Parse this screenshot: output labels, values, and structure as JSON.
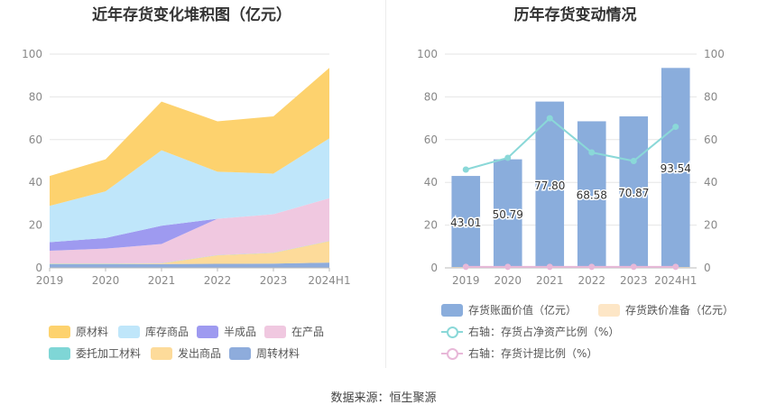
{
  "titles": {
    "left": "近年存货变化堆积图（亿元）",
    "right": "历年存货变动情况"
  },
  "source_text": "数据来源：恒生聚源",
  "chart_data": [
    {
      "type": "area",
      "stacked": true,
      "title": "近年存货变化堆积图（亿元）",
      "categories": [
        "2019",
        "2020",
        "2021",
        "2022",
        "2023",
        "2024H1"
      ],
      "ylim": [
        0,
        100
      ],
      "yticks": [
        0,
        20,
        40,
        60,
        80,
        100
      ],
      "grid": true,
      "legend_position": "bottom",
      "series": [
        {
          "name": "周转材料",
          "color": "#8eacdc",
          "values": [
            1.8,
            1.8,
            1.8,
            1.9,
            2.0,
            2.5
          ]
        },
        {
          "name": "发出商品",
          "color": "#fddb9a",
          "values": [
            0.2,
            0.2,
            0.3,
            4.0,
            5.0,
            10.0
          ]
        },
        {
          "name": "委托加工材料",
          "color": "#7fd6d6",
          "values": [
            0.1,
            0.1,
            0.1,
            0.1,
            0.1,
            0.1
          ]
        },
        {
          "name": "在产品",
          "color": "#f0c8e0",
          "values": [
            5.9,
            6.9,
            9.0,
            17.0,
            18.0,
            20.0
          ]
        },
        {
          "name": "半成品",
          "color": "#9e9af0",
          "values": [
            4.0,
            5.0,
            8.5,
            0.0,
            0.0,
            0.0
          ]
        },
        {
          "name": "库存商品",
          "color": "#bfe6fa",
          "values": [
            17.0,
            21.8,
            35.3,
            22.0,
            19.0,
            28.0
          ]
        },
        {
          "name": "原材料",
          "color": "#fdd26e",
          "values": [
            14.0,
            14.99,
            22.8,
            23.58,
            26.77,
            32.94
          ]
        }
      ],
      "legend_order": [
        "原材料",
        "库存商品",
        "半成品",
        "在产品",
        "委托加工材料",
        "发出商品",
        "周转材料"
      ]
    },
    {
      "type": "bar",
      "title": "历年存货变动情况",
      "categories": [
        "2019",
        "2020",
        "2021",
        "2022",
        "2023",
        "2024H1"
      ],
      "ylim": [
        0,
        100
      ],
      "y2lim": [
        0,
        100
      ],
      "yticks": [
        0,
        20,
        40,
        60,
        80,
        100
      ],
      "grid": true,
      "legend_position": "bottom",
      "series": [
        {
          "name": "存货账面价值（亿元）",
          "kind": "bar",
          "axis": "left",
          "color": "#8aaddc",
          "values": [
            43.01,
            50.79,
            77.8,
            68.58,
            70.87,
            93.54
          ],
          "labels": [
            "43.01",
            "50.79",
            "77.80",
            "68.58",
            "70.87",
            "93.54"
          ]
        },
        {
          "name": "存货跌价准备（亿元）",
          "kind": "bar",
          "axis": "left",
          "color": "#fde6c6",
          "values": [
            0.3,
            0.3,
            0.3,
            0.3,
            0.3,
            0.3
          ]
        },
        {
          "name": "右轴：存货占净资产比例（%）",
          "kind": "line",
          "axis": "right",
          "color": "#8ad8d8",
          "values": [
            46,
            51.5,
            70,
            54,
            50,
            66
          ]
        },
        {
          "name": "右轴：存货计提比例（%）",
          "kind": "line",
          "axis": "right",
          "color": "#e8b8d8",
          "values": [
            0.5,
            0.5,
            0.5,
            0.5,
            0.5,
            0.5
          ]
        }
      ]
    }
  ]
}
